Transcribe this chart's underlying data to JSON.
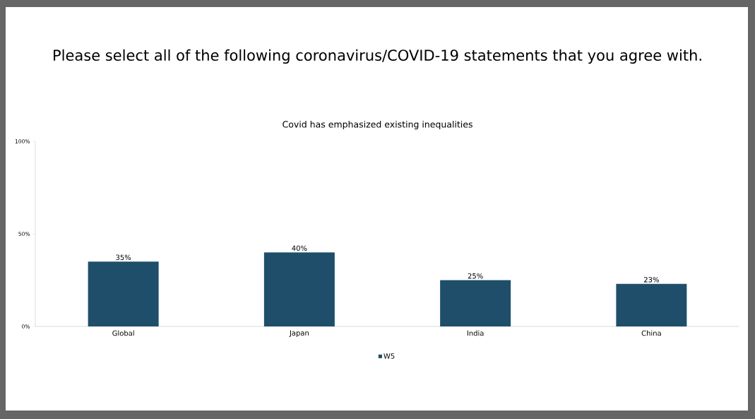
{
  "chart_data": {
    "type": "bar",
    "title": "Please select all of the following coronavirus/COVID-19 statements that you agree with.",
    "subtitle": "Covid has emphasized existing inequalities",
    "categories": [
      "Global",
      "Japan",
      "India",
      "China"
    ],
    "series": [
      {
        "name": "W5",
        "color": "#1f4e6b",
        "values": [
          35,
          40,
          25,
          23
        ]
      }
    ],
    "value_labels": [
      "35%",
      "40%",
      "25%",
      "23%"
    ],
    "ylim": [
      0,
      100
    ],
    "yticks": [
      {
        "value": 0,
        "label": "0%"
      },
      {
        "value": 50,
        "label": "50%"
      },
      {
        "value": 100,
        "label": "100%"
      }
    ],
    "legend": "bottom"
  }
}
